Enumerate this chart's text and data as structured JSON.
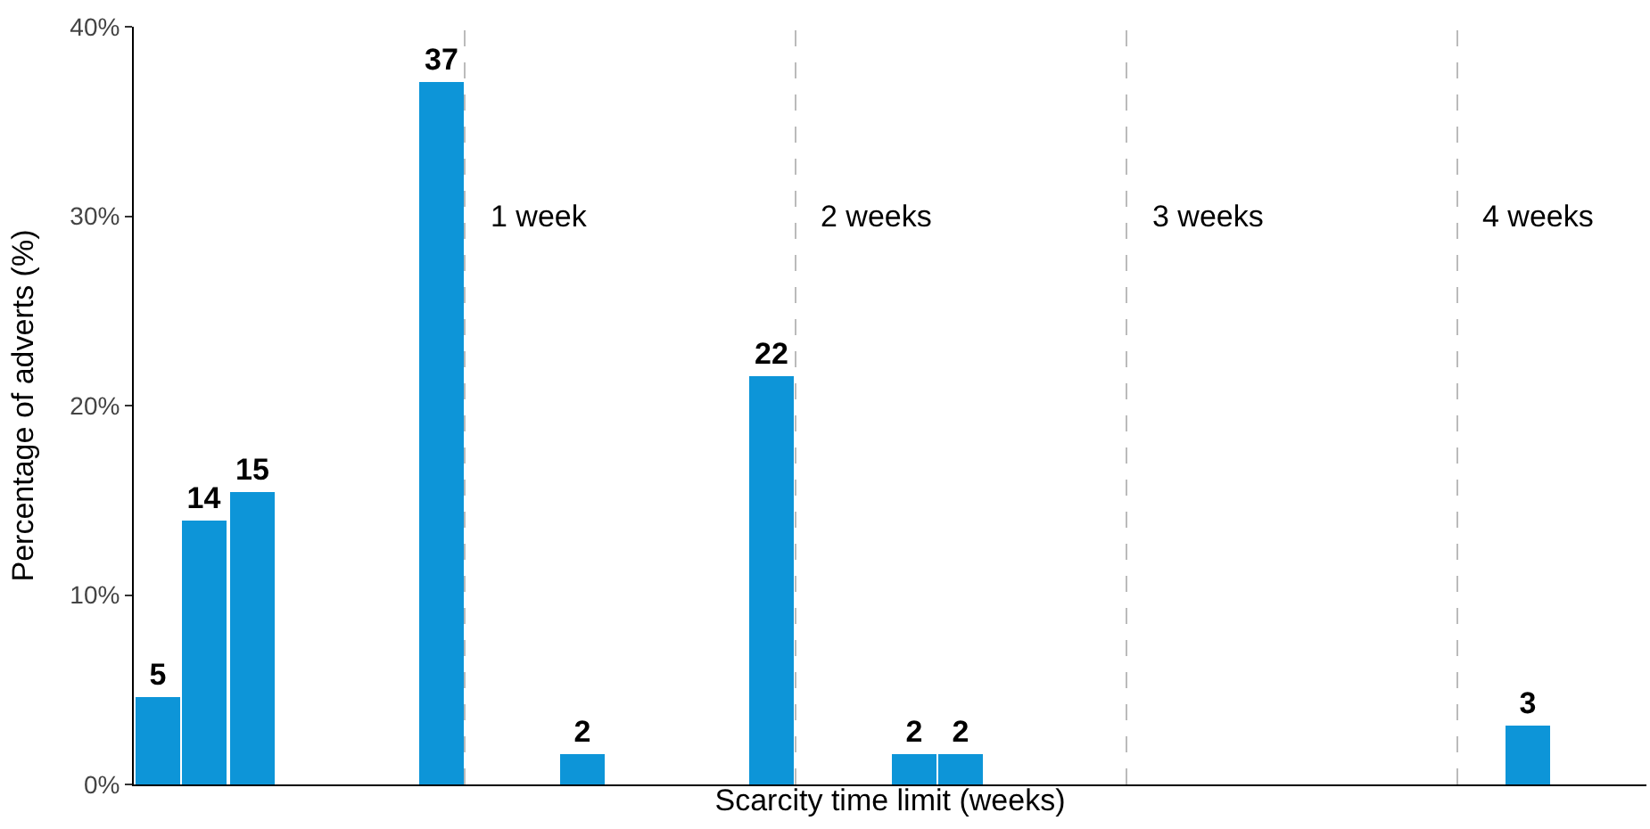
{
  "chart_data": {
    "type": "bar",
    "xlabel": "Scarcity time limit (weeks)",
    "ylabel": "Percentage of adverts (%)",
    "categories": [
      null,
      null,
      null,
      null,
      null,
      null,
      null,
      null,
      null,
      null,
      null,
      null,
      null,
      null,
      null,
      null,
      null,
      null,
      null,
      null,
      null,
      null,
      null,
      null,
      null,
      null,
      null,
      null,
      null,
      null,
      null,
      null
    ],
    "values": [
      4.6,
      13.9,
      15.4,
      0,
      0,
      0,
      37.1,
      0,
      0,
      1.6,
      0,
      0,
      0,
      21.6,
      0,
      0,
      1.6,
      1.6,
      0,
      0,
      0,
      0,
      0,
      0,
      0,
      0,
      0,
      0,
      0,
      3.1,
      0,
      0
    ],
    "value_labels": [
      "5",
      "14",
      "15",
      null,
      null,
      null,
      "37",
      null,
      null,
      "2",
      null,
      null,
      null,
      "22",
      null,
      null,
      "2",
      "2",
      null,
      null,
      null,
      null,
      null,
      null,
      null,
      null,
      null,
      null,
      null,
      "3",
      null,
      null
    ],
    "color": "#0d95d8",
    "ylim": [
      0,
      40
    ],
    "yticks": [
      {
        "value": 0,
        "label": "0%"
      },
      {
        "value": 10,
        "label": "10%"
      },
      {
        "value": 20,
        "label": "20%"
      },
      {
        "value": 30,
        "label": "30%"
      },
      {
        "value": 40,
        "label": "40%"
      }
    ],
    "tick_labels": "y",
    "annotations": [
      "1 week",
      "2 weeks",
      "3 weeks",
      "4 weeks"
    ]
  }
}
